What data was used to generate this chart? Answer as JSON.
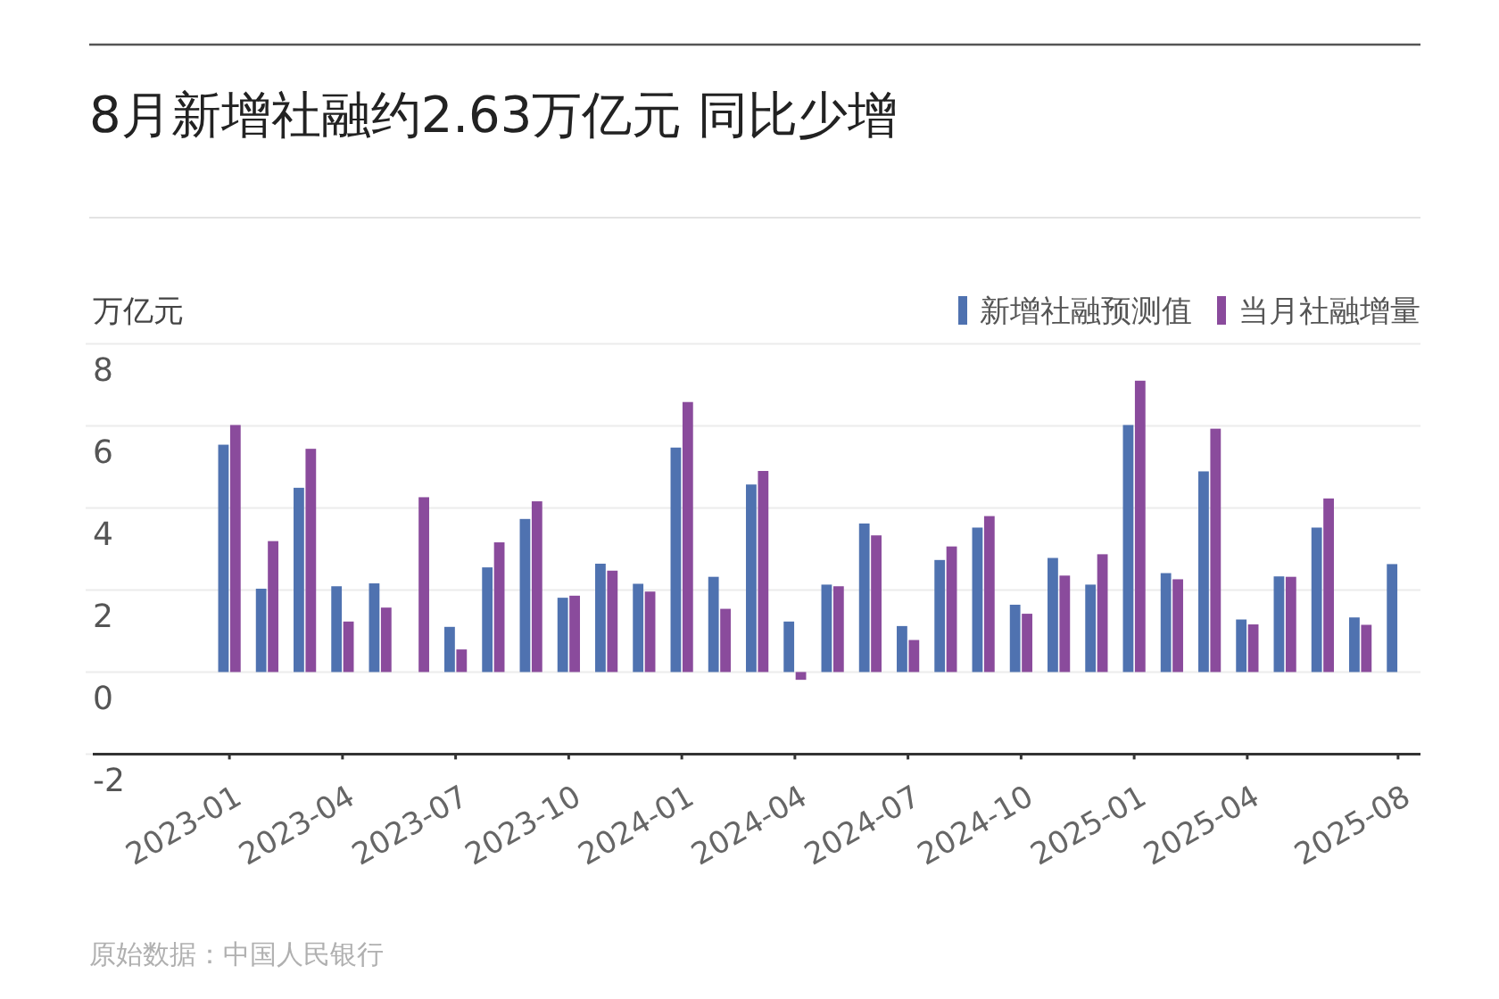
{
  "chart_data": {
    "type": "bar",
    "title": "8月新增社融约2.63万亿元 同比少增",
    "ylabel": "万亿元",
    "categories": [
      "2023-01",
      null,
      null,
      "2023-04",
      null,
      null,
      "2023-07",
      null,
      null,
      "2023-10",
      null,
      null,
      "2024-01",
      null,
      null,
      "2024-04",
      null,
      null,
      "2024-07",
      null,
      null,
      "2024-10",
      null,
      null,
      "2025-01",
      null,
      null,
      "2025-04",
      null,
      null,
      null,
      "2025-08"
    ],
    "series": [
      {
        "name": "新增社融预测值",
        "color": "#4f72b0",
        "values": [
          5.54,
          2.03,
          4.49,
          2.09,
          2.16,
          null,
          1.1,
          2.55,
          3.73,
          1.81,
          2.64,
          2.15,
          5.47,
          2.32,
          4.57,
          1.23,
          2.13,
          3.62,
          1.12,
          2.73,
          3.52,
          1.64,
          2.78,
          2.13,
          6.02,
          2.41,
          4.89,
          1.28,
          2.33,
          3.52,
          1.33,
          2.63
        ]
      },
      {
        "name": "当月社融增量",
        "color": "#8a4b9c",
        "values": [
          6.02,
          3.19,
          5.44,
          1.23,
          1.57,
          4.26,
          0.55,
          3.16,
          4.16,
          1.86,
          2.47,
          1.96,
          6.58,
          1.54,
          4.9,
          -0.19,
          2.09,
          3.33,
          0.78,
          3.06,
          3.8,
          1.42,
          2.35,
          2.87,
          7.1,
          2.26,
          5.93,
          1.16,
          2.32,
          4.23,
          1.15,
          null
        ]
      }
    ],
    "ylim": [
      -2,
      8
    ],
    "yticks": [
      -2,
      0,
      2,
      4,
      6,
      8
    ],
    "grid": "y",
    "legend": "top right",
    "annotations": [
      "原始数据：中国人民银行"
    ]
  }
}
